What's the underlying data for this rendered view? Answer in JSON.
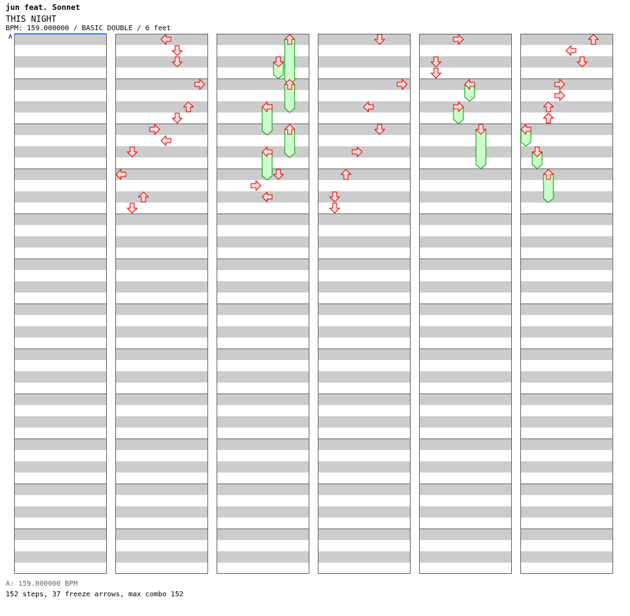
{
  "header": {
    "artist": "jun feat. Sonnet",
    "title": "THIS NIGHT",
    "info": "BPM: 159.000000 / BASIC DOUBLE / 6 feet",
    "bpm_marker": "A"
  },
  "footer": {
    "bpm_legend": "A: 159.000000 BPM",
    "stats": "152 steps, 37 freeze arrows, max combo 152"
  },
  "colors": {
    "band": "#cccccc",
    "background": "#ffffff",
    "border": "#666666",
    "arrow_fill": "#ffdddd",
    "arrow_stroke": "#dd0000",
    "freeze_fill": "#ccffcc",
    "freeze_stroke": "#009900",
    "bpm_line": "#3377ff"
  },
  "chart_data": {
    "type": "table",
    "columns": 6,
    "measures_per_column": 12,
    "lanes": [
      "left",
      "down",
      "up",
      "right",
      "left",
      "down",
      "up",
      "right"
    ],
    "notes": [
      {
        "c": 1,
        "m": 0,
        "b": 0,
        "l": 4,
        "d": "left"
      },
      {
        "c": 1,
        "m": 0,
        "b": 1,
        "l": 5,
        "d": "down"
      },
      {
        "c": 1,
        "m": 0,
        "b": 2,
        "l": 5,
        "d": "down"
      },
      {
        "c": 1,
        "m": 1,
        "b": 0,
        "l": 7,
        "d": "right"
      },
      {
        "c": 1,
        "m": 1,
        "b": 2,
        "l": 6,
        "d": "up"
      },
      {
        "c": 1,
        "m": 1,
        "b": 3,
        "l": 5,
        "d": "down"
      },
      {
        "c": 1,
        "m": 2,
        "b": 0,
        "l": 3,
        "d": "right"
      },
      {
        "c": 1,
        "m": 2,
        "b": 1,
        "l": 4,
        "d": "left"
      },
      {
        "c": 1,
        "m": 2,
        "b": 2,
        "l": 1,
        "d": "down"
      },
      {
        "c": 1,
        "m": 3,
        "b": 0,
        "l": 0,
        "d": "left"
      },
      {
        "c": 1,
        "m": 3,
        "b": 2,
        "l": 2,
        "d": "up"
      },
      {
        "c": 1,
        "m": 3,
        "b": 3,
        "l": 1,
        "d": "down"
      },
      {
        "c": 2,
        "m": 0,
        "b": 0,
        "l": 6,
        "d": "up",
        "f": 4
      },
      {
        "c": 2,
        "m": 0,
        "b": 2,
        "l": 5,
        "d": "down",
        "f": 1.5
      },
      {
        "c": 2,
        "m": 1,
        "b": 0,
        "l": 6,
        "d": "up",
        "f": 2.5
      },
      {
        "c": 2,
        "m": 1,
        "b": 2,
        "l": 4,
        "d": "left",
        "f": 2.5
      },
      {
        "c": 2,
        "m": 2,
        "b": 0,
        "l": 6,
        "d": "up",
        "f": 2.5
      },
      {
        "c": 2,
        "m": 2,
        "b": 2,
        "l": 4,
        "d": "left",
        "f": 2.5
      },
      {
        "c": 2,
        "m": 3,
        "b": 0,
        "l": 5,
        "d": "down"
      },
      {
        "c": 2,
        "m": 3,
        "b": 1,
        "l": 3,
        "d": "right"
      },
      {
        "c": 2,
        "m": 3,
        "b": 2,
        "l": 4,
        "d": "left"
      },
      {
        "c": 3,
        "m": 0,
        "b": 0,
        "l": 5,
        "d": "down"
      },
      {
        "c": 3,
        "m": 1,
        "b": 0,
        "l": 7,
        "d": "right"
      },
      {
        "c": 3,
        "m": 1,
        "b": 2,
        "l": 4,
        "d": "left"
      },
      {
        "c": 3,
        "m": 2,
        "b": 0,
        "l": 5,
        "d": "down"
      },
      {
        "c": 3,
        "m": 2,
        "b": 2,
        "l": 3,
        "d": "right"
      },
      {
        "c": 3,
        "m": 3,
        "b": 0,
        "l": 2,
        "d": "up"
      },
      {
        "c": 3,
        "m": 3,
        "b": 2,
        "l": 1,
        "d": "down"
      },
      {
        "c": 3,
        "m": 3,
        "b": 3,
        "l": 1,
        "d": "down"
      },
      {
        "c": 4,
        "m": 0,
        "b": 0,
        "l": 3,
        "d": "right"
      },
      {
        "c": 4,
        "m": 0,
        "b": 2,
        "l": 1,
        "d": "down"
      },
      {
        "c": 4,
        "m": 0,
        "b": 3,
        "l": 1,
        "d": "down"
      },
      {
        "c": 4,
        "m": 1,
        "b": 0,
        "l": 4,
        "d": "left",
        "f": 1.5
      },
      {
        "c": 4,
        "m": 1,
        "b": 2,
        "l": 3,
        "d": "right",
        "f": 1.5
      },
      {
        "c": 4,
        "m": 2,
        "b": 0,
        "l": 5,
        "d": "down",
        "f": 3.5
      },
      {
        "c": 5,
        "m": 0,
        "b": 0,
        "l": 6,
        "d": "up"
      },
      {
        "c": 5,
        "m": 0,
        "b": 1,
        "l": 4,
        "d": "left"
      },
      {
        "c": 5,
        "m": 0,
        "b": 2,
        "l": 5,
        "d": "down"
      },
      {
        "c": 5,
        "m": 1,
        "b": 0,
        "l": 3,
        "d": "right"
      },
      {
        "c": 5,
        "m": 1,
        "b": 1,
        "l": 3,
        "d": "right"
      },
      {
        "c": 5,
        "m": 1,
        "b": 2,
        "l": 2,
        "d": "up"
      },
      {
        "c": 5,
        "m": 1,
        "b": 3,
        "l": 2,
        "d": "up"
      },
      {
        "c": 5,
        "m": 2,
        "b": 0,
        "l": 0,
        "d": "left",
        "f": 1.5
      },
      {
        "c": 5,
        "m": 2,
        "b": 2,
        "l": 1,
        "d": "down",
        "f": 1.5
      },
      {
        "c": 5,
        "m": 3,
        "b": 0,
        "l": 2,
        "d": "up",
        "f": 2.5
      }
    ]
  }
}
